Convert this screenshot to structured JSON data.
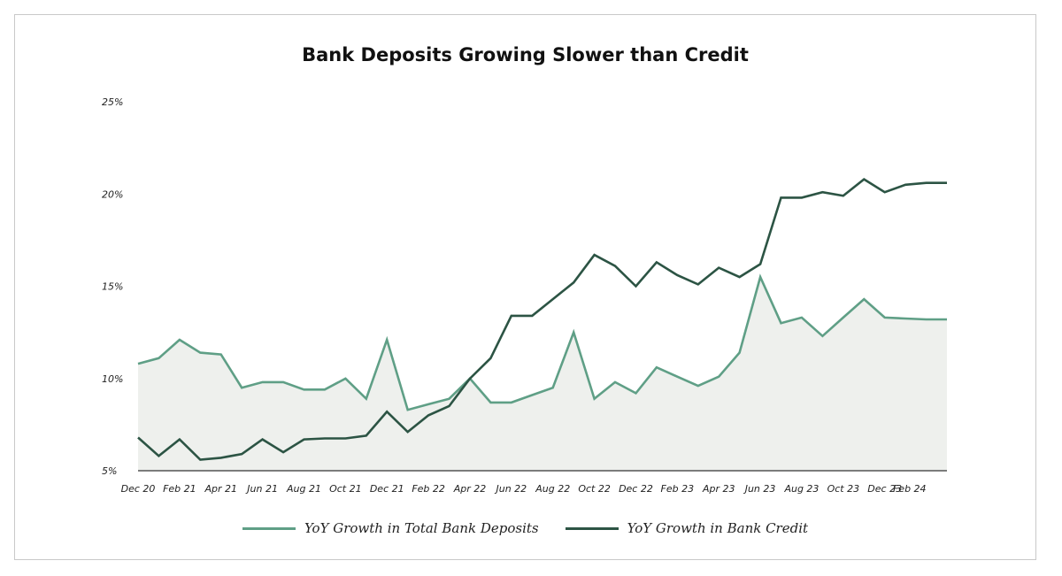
{
  "chart_data": {
    "type": "area",
    "title": "Bank Deposits Growing Slower than Credit",
    "y_ticks": [
      "5%",
      "10%",
      "15%",
      "20%",
      "25%"
    ],
    "ylim": [
      5,
      25
    ],
    "x_tick_labels": [
      "Dec 20",
      "Feb 21",
      "Apr 21",
      "Jun 21",
      "Aug 21",
      "Oct 21",
      "Dec 21",
      "Feb 22",
      "Apr 22",
      "Jun 22",
      "Aug 22",
      "Oct 22",
      "Dec 22",
      "Feb 23",
      "Apr 23",
      "Jun 23",
      "Aug 23",
      "Oct 23",
      "Dec 23",
      "Feb 24"
    ],
    "x": [
      "Dec 20",
      "Jan 21",
      "Feb 21",
      "Mar 21",
      "Apr 21",
      "May 21",
      "Jun 21",
      "Jul 21",
      "Aug 21",
      "Sep 21",
      "Oct 21",
      "Nov 21",
      "Dec 21",
      "Jan 22",
      "Feb 22",
      "Mar 22",
      "Apr 22",
      "May 22",
      "Jun 22",
      "Jul 22",
      "Aug 22",
      "Sep 22",
      "Oct 22",
      "Nov 22",
      "Dec 22",
      "Jan 23",
      "Feb 23",
      "Mar 23",
      "Apr 23",
      "May 23",
      "Jun 23",
      "Jul 23",
      "Aug 23",
      "Sep 23",
      "Oct 23",
      "Nov 23",
      "Dec 23",
      "Jan 24",
      "Feb 24",
      "Mar 24"
    ],
    "series": [
      {
        "name": "YoY Growth in Total Bank Deposits",
        "color": "#5f9f86",
        "fill": "#eef0ed",
        "values": [
          10.8,
          11.1,
          12.1,
          11.4,
          11.3,
          9.5,
          9.8,
          9.8,
          9.4,
          9.4,
          10.0,
          8.9,
          12.1,
          8.3,
          8.6,
          8.9,
          10.0,
          8.7,
          8.7,
          9.1,
          9.5,
          12.5,
          8.9,
          9.8,
          9.2,
          10.6,
          10.1,
          9.6,
          10.1,
          11.4,
          15.5,
          13.0,
          13.3,
          12.3,
          13.3,
          14.3,
          13.3,
          13.25,
          13.2,
          13.2
        ]
      },
      {
        "name": "YoY Growth in Bank Credit",
        "color": "#2c5444",
        "values": [
          6.8,
          5.8,
          6.7,
          5.6,
          5.7,
          5.9,
          6.7,
          6.0,
          6.7,
          6.75,
          6.75,
          6.9,
          8.2,
          7.1,
          8.0,
          8.5,
          10.0,
          11.1,
          13.4,
          13.4,
          14.3,
          15.2,
          16.7,
          16.1,
          15.0,
          16.3,
          15.6,
          15.1,
          16.0,
          15.5,
          16.2,
          19.8,
          19.8,
          20.1,
          19.9,
          20.8,
          20.1,
          20.5,
          20.6,
          20.6
        ]
      }
    ],
    "grid": false,
    "legend_position": "bottom"
  }
}
